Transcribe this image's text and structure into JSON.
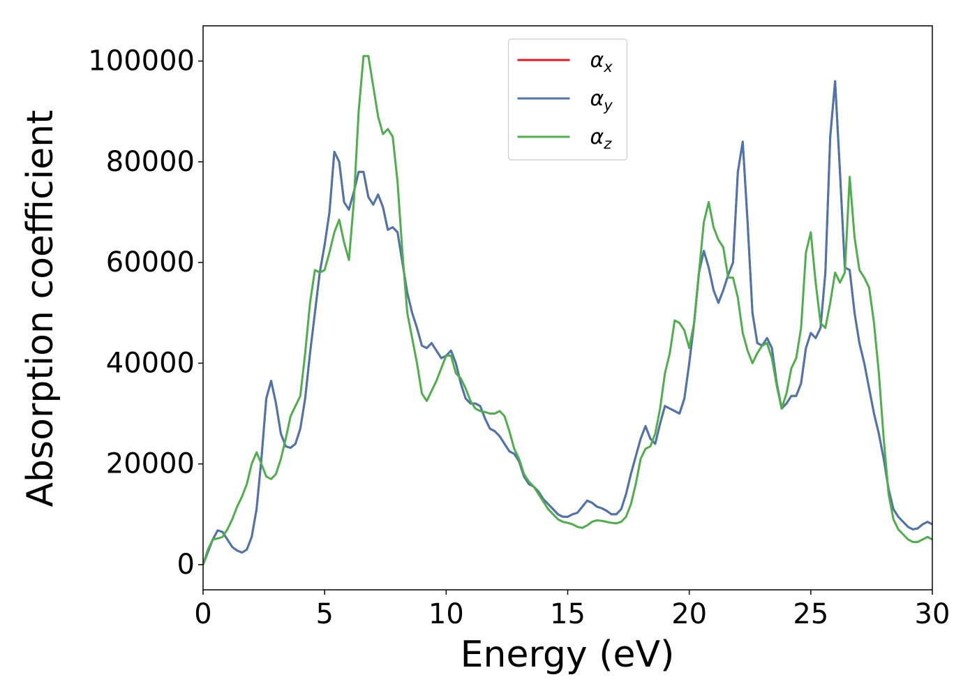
{
  "chart_data": {
    "type": "line",
    "xlabel": "Energy (eV)",
    "ylabel": "Absorption coefficient",
    "xlim": [
      0,
      30
    ],
    "ylim": [
      -5000,
      107000
    ],
    "xticks": [
      0,
      5,
      10,
      15,
      20,
      25,
      30
    ],
    "yticks": [
      0,
      20000,
      40000,
      60000,
      80000,
      100000
    ],
    "legend": "upper center",
    "x": [
      0,
      0.2,
      0.4,
      0.6,
      0.8,
      1,
      1.2,
      1.4,
      1.6,
      1.8,
      2,
      2.2,
      2.4,
      2.6,
      2.8,
      3,
      3.2,
      3.4,
      3.6,
      3.8,
      4,
      4.2,
      4.4,
      4.6,
      4.8,
      5,
      5.2,
      5.4,
      5.6,
      5.8,
      6,
      6.2,
      6.4,
      6.6,
      6.8,
      7,
      7.2,
      7.4,
      7.6,
      7.8,
      8,
      8.2,
      8.4,
      8.6,
      8.8,
      9,
      9.2,
      9.4,
      9.6,
      9.8,
      10,
      10.2,
      10.4,
      10.6,
      10.8,
      11,
      11.2,
      11.4,
      11.6,
      11.8,
      12,
      12.2,
      12.4,
      12.6,
      12.8,
      13,
      13.2,
      13.4,
      13.6,
      13.8,
      14,
      14.2,
      14.4,
      14.6,
      14.8,
      15,
      15.2,
      15.4,
      15.6,
      15.8,
      16,
      16.2,
      16.4,
      16.6,
      16.8,
      17,
      17.2,
      17.4,
      17.6,
      17.8,
      18,
      18.2,
      18.4,
      18.6,
      18.8,
      19,
      19.2,
      19.4,
      19.6,
      19.8,
      20,
      20.2,
      20.4,
      20.6,
      20.8,
      21,
      21.2,
      21.4,
      21.6,
      21.8,
      22,
      22.2,
      22.4,
      22.6,
      22.8,
      23,
      23.2,
      23.4,
      23.6,
      23.8,
      24,
      24.2,
      24.4,
      24.6,
      24.8,
      25,
      25.2,
      25.4,
      25.6,
      25.8,
      26,
      26.2,
      26.4,
      26.6,
      26.8,
      27,
      27.2,
      27.4,
      27.6,
      27.8,
      28,
      28.2,
      28.4,
      28.6,
      28.8,
      29,
      29.2,
      29.4,
      29.6,
      29.8,
      30
    ],
    "series": [
      {
        "name": "αx",
        "color": "#e41a1c",
        "values": [
          0,
          2500,
          5000,
          6800,
          6500,
          5000,
          3500,
          2800,
          2400,
          3000,
          5500,
          11000,
          21000,
          33000,
          36500,
          32000,
          26000,
          23500,
          23200,
          24000,
          27000,
          33000,
          42000,
          50000,
          58000,
          63500,
          70000,
          82000,
          80000,
          72000,
          70500,
          74000,
          78000,
          78000,
          73000,
          71500,
          73500,
          71000,
          66500,
          67000,
          66000,
          60000,
          54000,
          50000,
          47000,
          43500,
          43000,
          44000,
          42500,
          41000,
          41500,
          42500,
          40000,
          36000,
          33000,
          32000,
          32000,
          31500,
          29000,
          27000,
          26500,
          25500,
          24000,
          22500,
          22000,
          20500,
          17500,
          16000,
          15500,
          14500,
          13000,
          12000,
          11000,
          10000,
          9500,
          9500,
          10000,
          10300,
          11500,
          12700,
          12300,
          11500,
          11200,
          10700,
          10000,
          10000,
          11000,
          14000,
          18000,
          21500,
          25000,
          27500,
          25000,
          24000,
          28000,
          31500,
          31000,
          30500,
          30000,
          33000,
          40000,
          48000,
          58000,
          62300,
          59000,
          54500,
          52000,
          54500,
          57500,
          60000,
          78000,
          84000,
          68000,
          50000,
          44000,
          43500,
          45000,
          43000,
          36000,
          31000,
          32000,
          33500,
          33500,
          36000,
          43000,
          46000,
          45000,
          47000,
          58000,
          85000,
          96000,
          78000,
          59000,
          58500,
          50000,
          44000,
          40000,
          35000,
          30000,
          26000,
          21000,
          15000,
          11000,
          9500,
          8500,
          7500,
          7000,
          7200,
          8000,
          8500,
          8000
        ]
      },
      {
        "name": "αy",
        "color": "#4a76b0",
        "values": [
          0,
          2500,
          5000,
          6800,
          6500,
          5000,
          3500,
          2800,
          2400,
          3000,
          5500,
          11000,
          21000,
          33000,
          36500,
          32000,
          26000,
          23500,
          23200,
          24000,
          27000,
          33000,
          42000,
          50000,
          58000,
          63500,
          70000,
          82000,
          80000,
          72000,
          70500,
          74000,
          78000,
          78000,
          73000,
          71500,
          73500,
          71000,
          66500,
          67000,
          66000,
          60000,
          54000,
          50000,
          47000,
          43500,
          43000,
          44000,
          42500,
          41000,
          41500,
          42500,
          40000,
          36000,
          33000,
          32000,
          32000,
          31500,
          29000,
          27000,
          26500,
          25500,
          24000,
          22500,
          22000,
          20500,
          17500,
          16000,
          15500,
          14500,
          13000,
          12000,
          11000,
          10000,
          9500,
          9500,
          10000,
          10300,
          11500,
          12700,
          12300,
          11500,
          11200,
          10700,
          10000,
          10000,
          11000,
          14000,
          18000,
          21500,
          25000,
          27500,
          25000,
          24000,
          28000,
          31500,
          31000,
          30500,
          30000,
          33000,
          40000,
          48000,
          58000,
          62300,
          59000,
          54500,
          52000,
          54500,
          57500,
          60000,
          78000,
          84000,
          68000,
          50000,
          44000,
          43500,
          45000,
          43000,
          36000,
          31000,
          32000,
          33500,
          33500,
          36000,
          43000,
          46000,
          45000,
          47000,
          58000,
          85000,
          96000,
          78000,
          59000,
          58500,
          50000,
          44000,
          40000,
          35000,
          30000,
          26000,
          21000,
          15000,
          11000,
          9500,
          8500,
          7500,
          7000,
          7200,
          8000,
          8500,
          8000
        ]
      },
      {
        "name": "αz",
        "color": "#4daf4a",
        "values": [
          0,
          3000,
          5000,
          5200,
          5500,
          7000,
          9000,
          11500,
          13500,
          16000,
          20000,
          22300,
          20000,
          17500,
          17000,
          18000,
          21000,
          25000,
          29500,
          31500,
          33500,
          42000,
          52000,
          58500,
          58000,
          58500,
          62000,
          66000,
          68500,
          64000,
          60500,
          72000,
          90000,
          101000,
          101000,
          95000,
          89000,
          85500,
          86500,
          85000,
          76000,
          62000,
          50000,
          45000,
          40000,
          34000,
          32500,
          34500,
          36500,
          39000,
          41500,
          41500,
          38000,
          37000,
          35000,
          32500,
          31000,
          30500,
          30300,
          30000,
          30000,
          30500,
          29500,
          26500,
          23000,
          21000,
          18000,
          16500,
          15500,
          14000,
          12500,
          11000,
          10000,
          9000,
          8500,
          8300,
          8000,
          7500,
          7300,
          7800,
          8500,
          8800,
          8700,
          8500,
          8300,
          8200,
          8500,
          9500,
          12000,
          16000,
          21000,
          23000,
          23500,
          26000,
          31000,
          38000,
          42000,
          48500,
          48000,
          46500,
          43000,
          48000,
          58000,
          68000,
          72000,
          67000,
          64500,
          63000,
          57000,
          57000,
          53000,
          46000,
          42500,
          40000,
          42000,
          43500,
          44000,
          41000,
          35500,
          31000,
          34000,
          39000,
          41000,
          47000,
          62000,
          66000,
          56000,
          48000,
          47000,
          52000,
          58000,
          56000,
          58000,
          77000,
          65000,
          58500,
          57000,
          55000,
          48000,
          38000,
          25000,
          14000,
          9000,
          7000,
          6000,
          5000,
          4500,
          4500,
          5000,
          5500,
          5000
        ]
      }
    ]
  }
}
